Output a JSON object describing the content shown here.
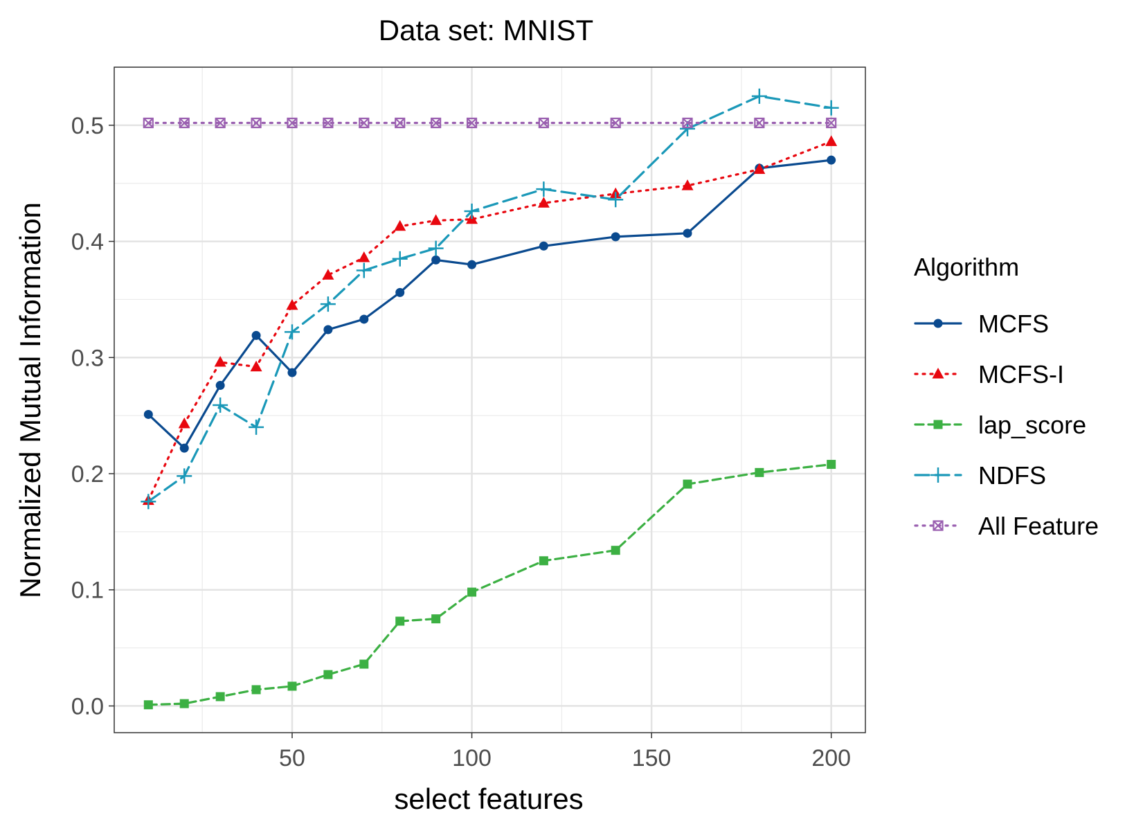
{
  "chart_data": {
    "type": "line",
    "title": "Data set: MNIST",
    "xlabel": "select features",
    "ylabel": "Normalized Mutual Information",
    "xlim": [
      0.5,
      209.5
    ],
    "ylim": [
      -0.023,
      0.55
    ],
    "x_ticks": [
      50,
      100,
      150,
      200
    ],
    "y_ticks": [
      0.0,
      0.1,
      0.2,
      0.3,
      0.4,
      0.5
    ],
    "x_tick_labels": [
      "50",
      "100",
      "150",
      "200"
    ],
    "y_tick_labels": [
      "0.0",
      "0.1",
      "0.2",
      "0.3",
      "0.4",
      "0.5"
    ],
    "grid": true,
    "legend_position": "right",
    "legend_title": "Algorithm",
    "x": [
      10,
      20,
      30,
      40,
      50,
      60,
      70,
      80,
      90,
      100,
      120,
      140,
      160,
      180,
      200
    ],
    "series": [
      {
        "name": "MCFS",
        "color": "#0a4a8f",
        "dash": "solid",
        "marker": "circle",
        "values": [
          0.251,
          0.222,
          0.276,
          0.319,
          0.287,
          0.324,
          0.333,
          0.356,
          0.384,
          0.38,
          0.396,
          0.404,
          0.407,
          0.463,
          0.47
        ]
      },
      {
        "name": "MCFS-I",
        "color": "#e8070f",
        "dash": "dotted",
        "marker": "triangle",
        "values": [
          0.177,
          0.243,
          0.296,
          0.292,
          0.345,
          0.371,
          0.386,
          0.413,
          0.418,
          0.419,
          0.433,
          0.441,
          0.448,
          0.462,
          0.486
        ]
      },
      {
        "name": "lap_score",
        "color": "#3cb043",
        "dash": "dashed",
        "marker": "square",
        "values": [
          0.001,
          0.002,
          0.008,
          0.014,
          0.017,
          0.027,
          0.036,
          0.073,
          0.075,
          0.098,
          0.125,
          0.134,
          0.191,
          0.201,
          0.208
        ]
      },
      {
        "name": "NDFS",
        "color": "#1a98b8",
        "dash": "longdash",
        "marker": "plus",
        "values": [
          0.176,
          0.198,
          0.259,
          0.24,
          0.322,
          0.346,
          0.375,
          0.385,
          0.394,
          0.426,
          0.445,
          0.436,
          0.497,
          0.525,
          0.515
        ]
      },
      {
        "name": "All Feature",
        "color": "#9a5fb0",
        "dash": "dotted",
        "marker": "boxcross",
        "values": [
          0.502,
          0.502,
          0.502,
          0.502,
          0.502,
          0.502,
          0.502,
          0.502,
          0.502,
          0.502,
          0.502,
          0.502,
          0.502,
          0.502,
          0.502
        ]
      }
    ]
  }
}
